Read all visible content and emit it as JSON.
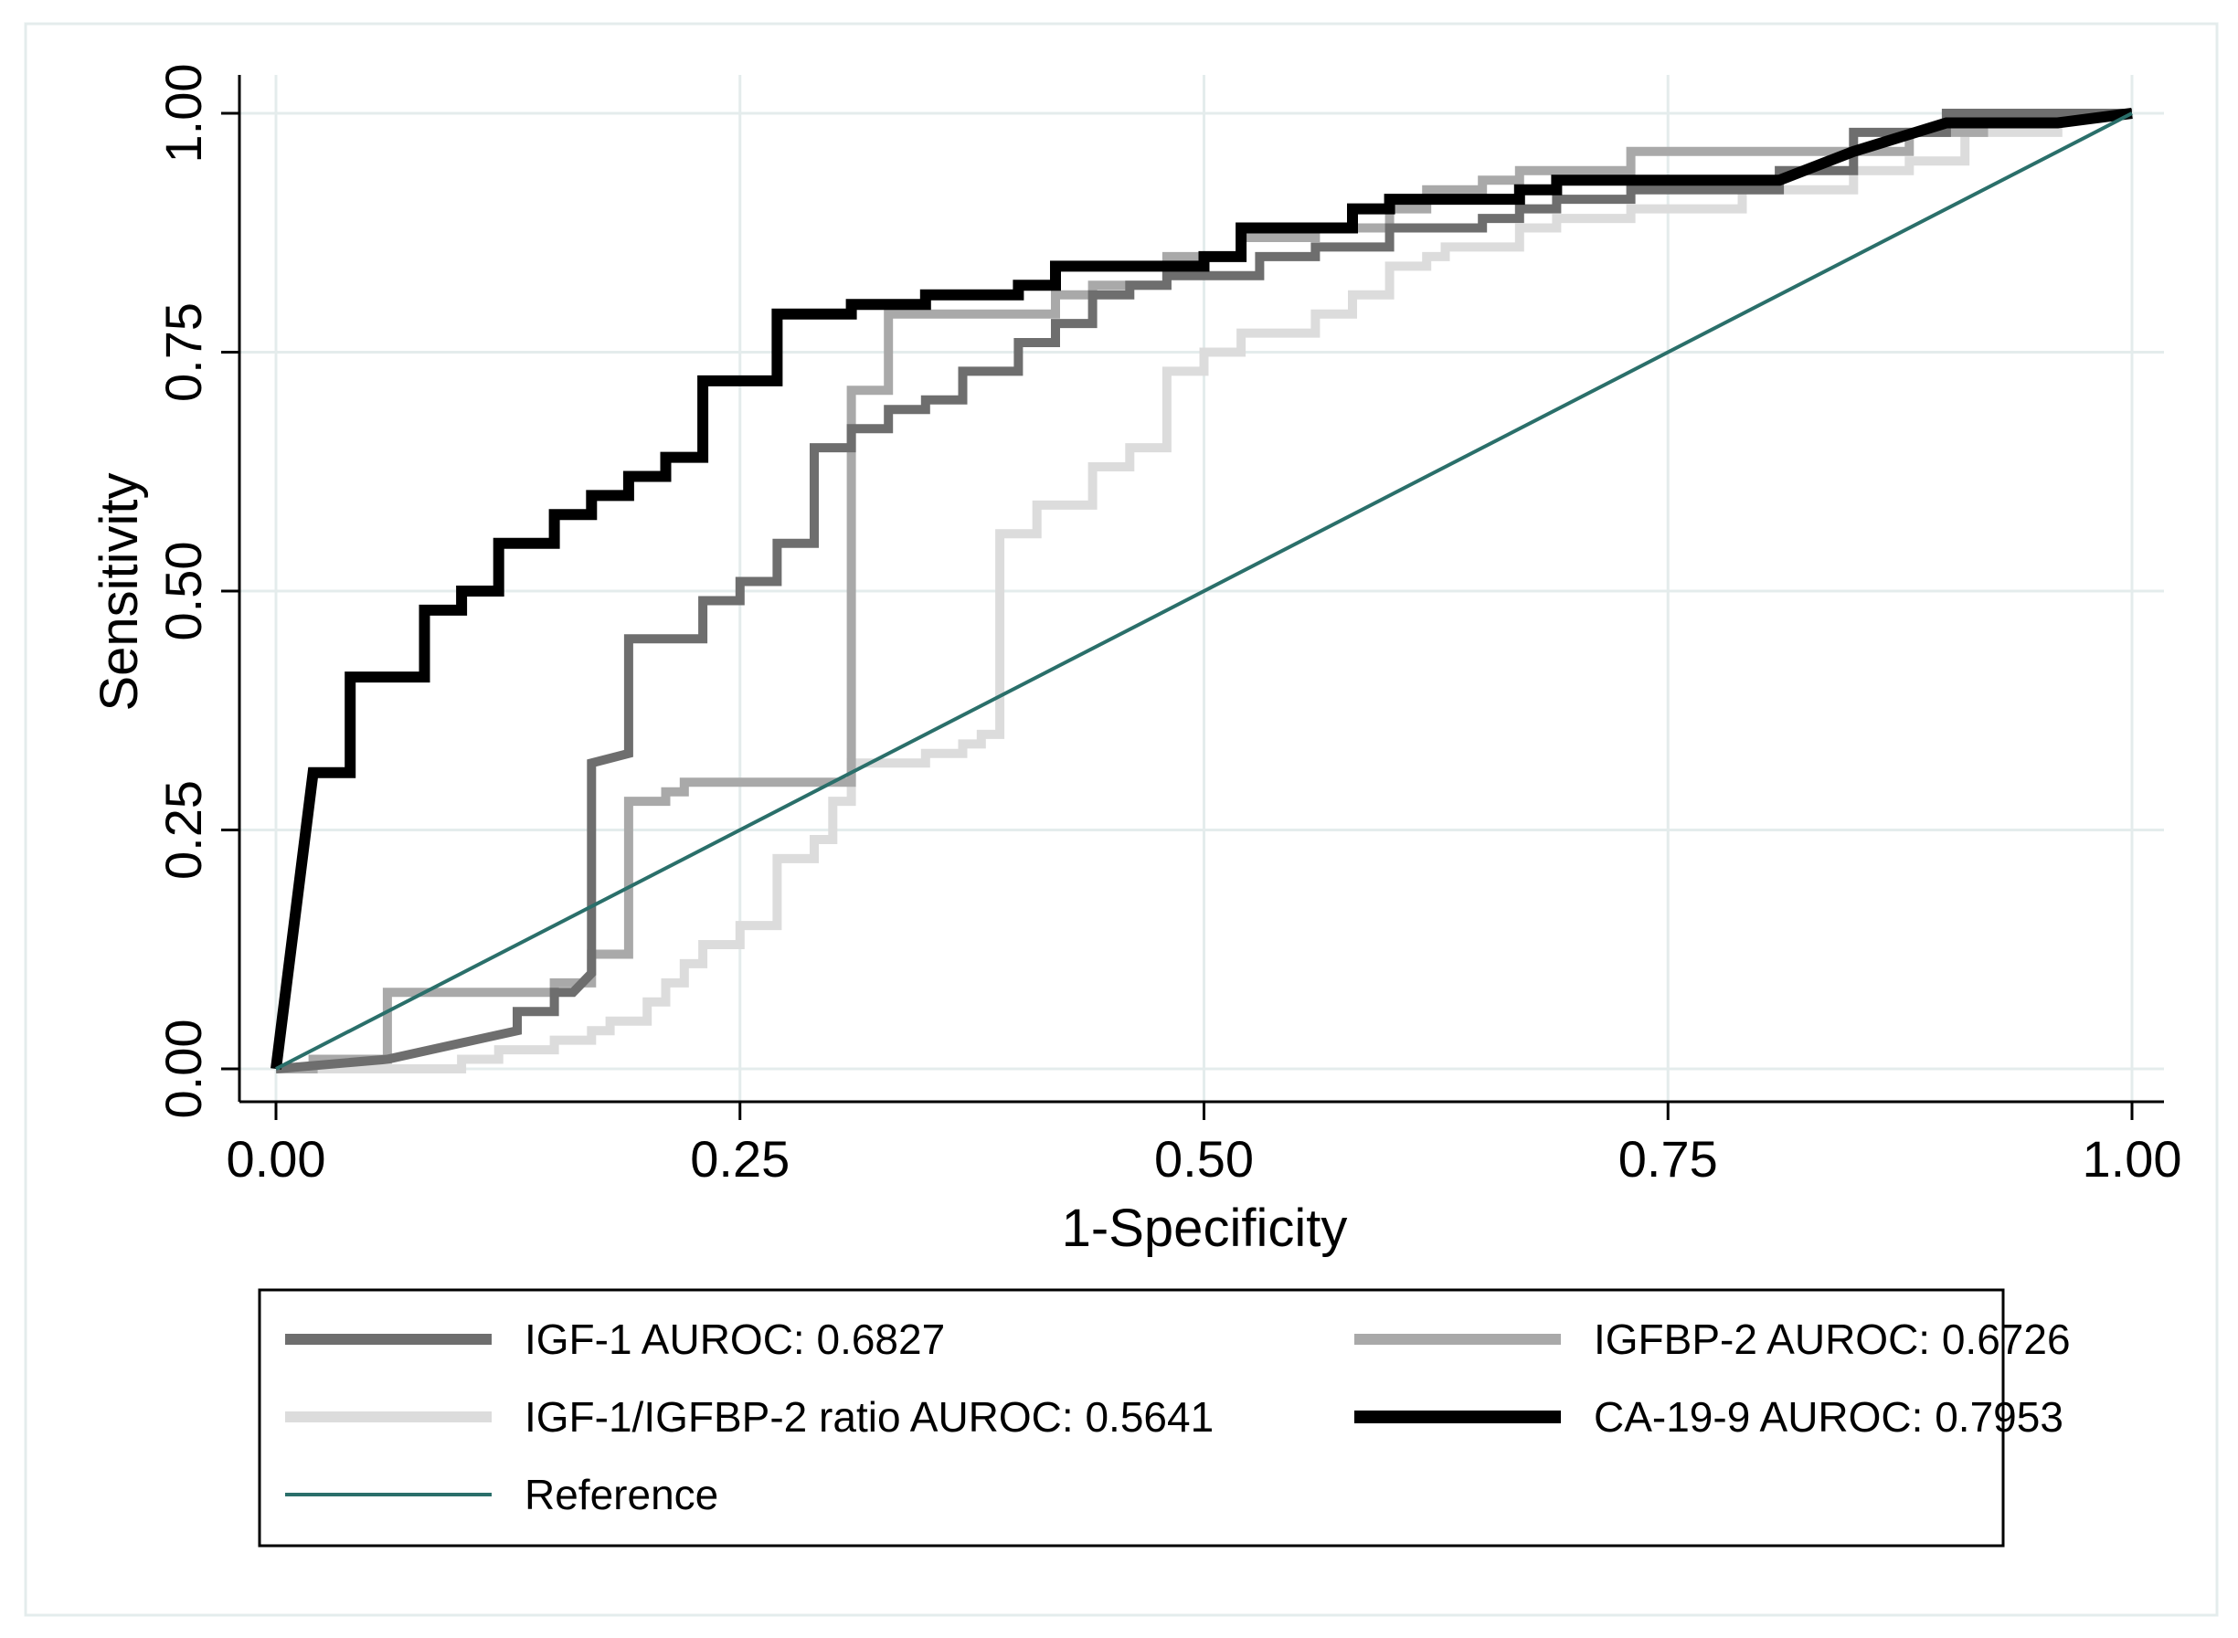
{
  "chart_data": {
    "type": "line",
    "title": "",
    "xlabel": "1-Specificity",
    "ylabel": "Sensitivity",
    "xlim": [
      0,
      1
    ],
    "ylim": [
      0,
      1
    ],
    "x_ticks": [
      "0.00",
      "0.25",
      "0.50",
      "0.75",
      "1.00"
    ],
    "y_ticks": [
      "0.00",
      "0.25",
      "0.50",
      "0.75",
      "1.00"
    ],
    "grid": true,
    "legend_position": "bottom",
    "series": [
      {
        "name": "IGF-1/IGFBP-2 ratio AUROC: 0.5641",
        "color": "#dcdcdc",
        "points": [
          [
            0,
            0
          ],
          [
            0.1,
            0
          ],
          [
            0.1,
            0.01
          ],
          [
            0.12,
            0.01
          ],
          [
            0.12,
            0.02
          ],
          [
            0.15,
            0.02
          ],
          [
            0.15,
            0.03
          ],
          [
            0.17,
            0.03
          ],
          [
            0.17,
            0.04
          ],
          [
            0.18,
            0.04
          ],
          [
            0.18,
            0.05
          ],
          [
            0.2,
            0.05
          ],
          [
            0.2,
            0.07
          ],
          [
            0.21,
            0.07
          ],
          [
            0.21,
            0.09
          ],
          [
            0.22,
            0.09
          ],
          [
            0.22,
            0.11
          ],
          [
            0.23,
            0.11
          ],
          [
            0.23,
            0.13
          ],
          [
            0.25,
            0.13
          ],
          [
            0.25,
            0.15
          ],
          [
            0.27,
            0.15
          ],
          [
            0.27,
            0.22
          ],
          [
            0.29,
            0.22
          ],
          [
            0.29,
            0.24
          ],
          [
            0.3,
            0.24
          ],
          [
            0.3,
            0.28
          ],
          [
            0.31,
            0.28
          ],
          [
            0.31,
            0.32
          ],
          [
            0.35,
            0.32
          ],
          [
            0.35,
            0.33
          ],
          [
            0.37,
            0.33
          ],
          [
            0.37,
            0.34
          ],
          [
            0.38,
            0.34
          ],
          [
            0.38,
            0.35
          ],
          [
            0.39,
            0.35
          ],
          [
            0.39,
            0.56
          ],
          [
            0.41,
            0.56
          ],
          [
            0.41,
            0.59
          ],
          [
            0.44,
            0.59
          ],
          [
            0.44,
            0.63
          ],
          [
            0.46,
            0.63
          ],
          [
            0.46,
            0.65
          ],
          [
            0.48,
            0.65
          ],
          [
            0.48,
            0.73
          ],
          [
            0.5,
            0.73
          ],
          [
            0.5,
            0.75
          ],
          [
            0.52,
            0.75
          ],
          [
            0.52,
            0.77
          ],
          [
            0.56,
            0.77
          ],
          [
            0.56,
            0.79
          ],
          [
            0.58,
            0.79
          ],
          [
            0.58,
            0.81
          ],
          [
            0.6,
            0.81
          ],
          [
            0.6,
            0.84
          ],
          [
            0.62,
            0.84
          ],
          [
            0.62,
            0.85
          ],
          [
            0.63,
            0.85
          ],
          [
            0.63,
            0.86
          ],
          [
            0.67,
            0.86
          ],
          [
            0.67,
            0.88
          ],
          [
            0.69,
            0.88
          ],
          [
            0.69,
            0.89
          ],
          [
            0.73,
            0.89
          ],
          [
            0.73,
            0.9
          ],
          [
            0.79,
            0.9
          ],
          [
            0.79,
            0.92
          ],
          [
            0.85,
            0.92
          ],
          [
            0.85,
            0.94
          ],
          [
            0.88,
            0.94
          ],
          [
            0.88,
            0.95
          ],
          [
            0.91,
            0.95
          ],
          [
            0.91,
            0.98
          ],
          [
            0.96,
            0.98
          ],
          [
            0.96,
            1.0
          ],
          [
            1.0,
            1.0
          ]
        ]
      },
      {
        "name": "IGFBP-2 AUROC: 0.6726",
        "color": "#a9a9a9",
        "points": [
          [
            0,
            0
          ],
          [
            0.02,
            0
          ],
          [
            0.02,
            0.01
          ],
          [
            0.06,
            0.01
          ],
          [
            0.06,
            0.08
          ],
          [
            0.15,
            0.08
          ],
          [
            0.15,
            0.09
          ],
          [
            0.17,
            0.09
          ],
          [
            0.17,
            0.12
          ],
          [
            0.19,
            0.12
          ],
          [
            0.19,
            0.28
          ],
          [
            0.21,
            0.28
          ],
          [
            0.21,
            0.29
          ],
          [
            0.22,
            0.29
          ],
          [
            0.22,
            0.3
          ],
          [
            0.31,
            0.3
          ],
          [
            0.31,
            0.71
          ],
          [
            0.33,
            0.71
          ],
          [
            0.33,
            0.79
          ],
          [
            0.42,
            0.79
          ],
          [
            0.42,
            0.81
          ],
          [
            0.44,
            0.81
          ],
          [
            0.44,
            0.82
          ],
          [
            0.48,
            0.82
          ],
          [
            0.48,
            0.85
          ],
          [
            0.52,
            0.85
          ],
          [
            0.52,
            0.87
          ],
          [
            0.56,
            0.87
          ],
          [
            0.56,
            0.88
          ],
          [
            0.6,
            0.88
          ],
          [
            0.6,
            0.9
          ],
          [
            0.62,
            0.9
          ],
          [
            0.62,
            0.92
          ],
          [
            0.65,
            0.92
          ],
          [
            0.65,
            0.93
          ],
          [
            0.67,
            0.93
          ],
          [
            0.67,
            0.94
          ],
          [
            0.73,
            0.94
          ],
          [
            0.73,
            0.96
          ],
          [
            0.88,
            0.96
          ],
          [
            0.88,
            0.98
          ],
          [
            0.92,
            0.98
          ],
          [
            0.92,
            1.0
          ],
          [
            1.0,
            1.0
          ]
        ]
      },
      {
        "name": "IGF-1 AUROC: 0.6827",
        "color": "#6e6e6e",
        "points": [
          [
            0,
            0
          ],
          [
            0.06,
            0.01
          ],
          [
            0.13,
            0.04
          ],
          [
            0.13,
            0.06
          ],
          [
            0.15,
            0.06
          ],
          [
            0.15,
            0.08
          ],
          [
            0.16,
            0.08
          ],
          [
            0.17,
            0.1
          ],
          [
            0.17,
            0.32
          ],
          [
            0.19,
            0.33
          ],
          [
            0.19,
            0.45
          ],
          [
            0.23,
            0.45
          ],
          [
            0.23,
            0.49
          ],
          [
            0.25,
            0.49
          ],
          [
            0.25,
            0.51
          ],
          [
            0.27,
            0.51
          ],
          [
            0.27,
            0.55
          ],
          [
            0.29,
            0.55
          ],
          [
            0.29,
            0.65
          ],
          [
            0.31,
            0.65
          ],
          [
            0.31,
            0.67
          ],
          [
            0.33,
            0.67
          ],
          [
            0.33,
            0.69
          ],
          [
            0.35,
            0.69
          ],
          [
            0.35,
            0.7
          ],
          [
            0.37,
            0.7
          ],
          [
            0.37,
            0.73
          ],
          [
            0.4,
            0.73
          ],
          [
            0.4,
            0.76
          ],
          [
            0.42,
            0.76
          ],
          [
            0.42,
            0.78
          ],
          [
            0.44,
            0.78
          ],
          [
            0.44,
            0.81
          ],
          [
            0.46,
            0.81
          ],
          [
            0.46,
            0.82
          ],
          [
            0.48,
            0.82
          ],
          [
            0.48,
            0.83
          ],
          [
            0.53,
            0.83
          ],
          [
            0.53,
            0.85
          ],
          [
            0.56,
            0.85
          ],
          [
            0.56,
            0.86
          ],
          [
            0.6,
            0.86
          ],
          [
            0.6,
            0.88
          ],
          [
            0.65,
            0.88
          ],
          [
            0.65,
            0.89
          ],
          [
            0.67,
            0.89
          ],
          [
            0.67,
            0.9
          ],
          [
            0.69,
            0.9
          ],
          [
            0.69,
            0.91
          ],
          [
            0.73,
            0.91
          ],
          [
            0.73,
            0.92
          ],
          [
            0.81,
            0.92
          ],
          [
            0.81,
            0.94
          ],
          [
            0.85,
            0.94
          ],
          [
            0.85,
            0.98
          ],
          [
            0.9,
            0.98
          ],
          [
            0.9,
            1.0
          ],
          [
            1.0,
            1.0
          ]
        ]
      },
      {
        "name": "CA-19-9 AUROC: 0.7953",
        "color": "#000000",
        "points": [
          [
            0,
            0
          ],
          [
            0.02,
            0.31
          ],
          [
            0.04,
            0.31
          ],
          [
            0.04,
            0.41
          ],
          [
            0.08,
            0.41
          ],
          [
            0.08,
            0.48
          ],
          [
            0.1,
            0.48
          ],
          [
            0.1,
            0.5
          ],
          [
            0.12,
            0.5
          ],
          [
            0.12,
            0.55
          ],
          [
            0.15,
            0.55
          ],
          [
            0.15,
            0.58
          ],
          [
            0.17,
            0.58
          ],
          [
            0.17,
            0.6
          ],
          [
            0.19,
            0.6
          ],
          [
            0.19,
            0.62
          ],
          [
            0.21,
            0.62
          ],
          [
            0.21,
            0.64
          ],
          [
            0.23,
            0.64
          ],
          [
            0.23,
            0.72
          ],
          [
            0.27,
            0.72
          ],
          [
            0.27,
            0.79
          ],
          [
            0.31,
            0.79
          ],
          [
            0.31,
            0.8
          ],
          [
            0.35,
            0.8
          ],
          [
            0.35,
            0.81
          ],
          [
            0.4,
            0.81
          ],
          [
            0.4,
            0.82
          ],
          [
            0.42,
            0.82
          ],
          [
            0.42,
            0.84
          ],
          [
            0.5,
            0.84
          ],
          [
            0.5,
            0.85
          ],
          [
            0.52,
            0.85
          ],
          [
            0.52,
            0.88
          ],
          [
            0.58,
            0.88
          ],
          [
            0.58,
            0.9
          ],
          [
            0.6,
            0.9
          ],
          [
            0.6,
            0.91
          ],
          [
            0.67,
            0.91
          ],
          [
            0.67,
            0.92
          ],
          [
            0.69,
            0.92
          ],
          [
            0.69,
            0.93
          ],
          [
            0.81,
            0.93
          ],
          [
            0.85,
            0.96
          ],
          [
            0.9,
            0.99
          ],
          [
            0.96,
            0.99
          ],
          [
            1.0,
            1.0
          ]
        ]
      },
      {
        "name": "Reference",
        "color": "#2a6f6a",
        "points": [
          [
            0,
            0
          ],
          [
            1,
            1
          ]
        ]
      }
    ],
    "legend_order": [
      2,
      1,
      0,
      3,
      4
    ]
  }
}
